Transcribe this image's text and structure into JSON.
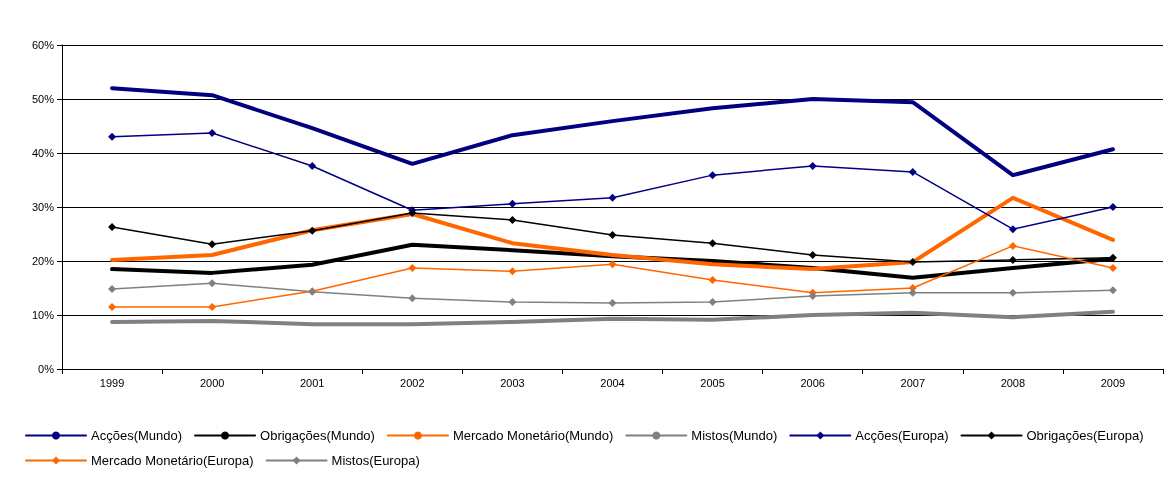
{
  "chart_data": {
    "type": "line",
    "categories": [
      "1999",
      "2000",
      "2001",
      "2002",
      "2003",
      "2004",
      "2005",
      "2006",
      "2007",
      "2008",
      "2009"
    ],
    "ylim": [
      0,
      60
    ],
    "yticks": [
      {
        "value": 0,
        "label": "0%"
      },
      {
        "value": 10,
        "label": "10%"
      },
      {
        "value": 20,
        "label": "20%"
      },
      {
        "value": 30,
        "label": "30%"
      },
      {
        "value": 40,
        "label": "40%"
      },
      {
        "value": 50,
        "label": "50%"
      },
      {
        "value": 60,
        "label": "60%"
      }
    ],
    "grid": "y",
    "legend": "bottom",
    "series": [
      {
        "name": "Acções(Mundo)",
        "color": "#000080",
        "marker": "none",
        "values": [
          52.0,
          50.7,
          44.6,
          38.0,
          43.3,
          45.9,
          48.3,
          50.0,
          49.4,
          35.9,
          40.7
        ]
      },
      {
        "name": "Obrigações(Mundo)",
        "color": "#000000",
        "marker": "none",
        "values": [
          18.5,
          17.8,
          19.3,
          23.0,
          22.0,
          20.9,
          20.0,
          18.7,
          16.9,
          18.7,
          20.4
        ]
      },
      {
        "name": "Mercado Monetário(Mundo)",
        "color": "#ff6600",
        "marker": "none",
        "values": [
          20.2,
          21.1,
          25.7,
          28.7,
          23.3,
          21.1,
          19.4,
          18.5,
          19.8,
          31.7,
          23.9
        ]
      },
      {
        "name": "Mistos(Mundo)",
        "color": "#808080",
        "marker": "none",
        "values": [
          8.7,
          8.9,
          8.3,
          8.3,
          8.7,
          9.3,
          9.1,
          10.0,
          10.4,
          9.6,
          10.6
        ]
      },
      {
        "name": "Acções(Europa)",
        "color": "#000080",
        "marker": "diamond",
        "values": [
          43.0,
          43.7,
          37.6,
          29.4,
          30.6,
          31.7,
          35.9,
          37.6,
          36.5,
          25.9,
          30.0
        ]
      },
      {
        "name": "Obrigações(Europa)",
        "color": "#000000",
        "marker": "diamond",
        "values": [
          26.3,
          23.1,
          25.6,
          28.9,
          27.6,
          24.8,
          23.3,
          21.1,
          19.8,
          20.2,
          20.6
        ]
      },
      {
        "name": "Mercado Monetário(Europa)",
        "color": "#ff6600",
        "marker": "diamond",
        "values": [
          11.5,
          11.5,
          14.4,
          18.7,
          18.1,
          19.4,
          16.5,
          14.1,
          15.0,
          22.8,
          18.7
        ]
      },
      {
        "name": "Mistos(Europa)",
        "color": "#808080",
        "marker": "diamond",
        "values": [
          14.8,
          15.9,
          14.3,
          13.1,
          12.4,
          12.2,
          12.4,
          13.5,
          14.1,
          14.1,
          14.6
        ]
      }
    ]
  }
}
